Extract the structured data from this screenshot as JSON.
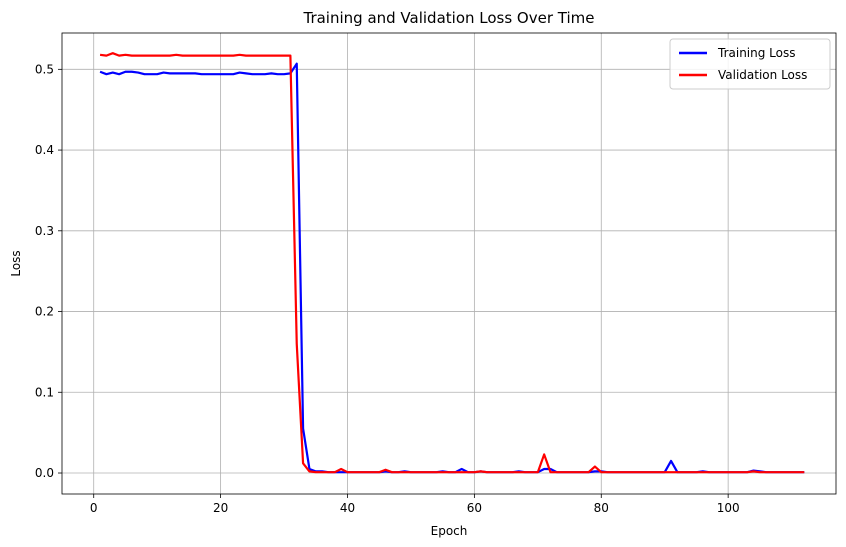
{
  "chart_data": {
    "type": "line",
    "title": "Training and Validation Loss Over Time",
    "xlabel": "Epoch",
    "ylabel": "Loss",
    "xlim": [
      -5,
      117
    ],
    "ylim": [
      -0.026,
      0.545
    ],
    "x_ticks": [
      0,
      20,
      40,
      60,
      80,
      100
    ],
    "y_ticks": [
      0.0,
      0.1,
      0.2,
      0.3,
      0.4,
      0.5
    ],
    "y_tick_labels": [
      "0.0",
      "0.1",
      "0.2",
      "0.3",
      "0.4",
      "0.5"
    ],
    "grid": true,
    "legend_position": "top-right",
    "series": [
      {
        "name": "Training Loss",
        "color": "#0000ff",
        "points": [
          [
            1,
            0.497
          ],
          [
            2,
            0.494
          ],
          [
            3,
            0.496
          ],
          [
            4,
            0.494
          ],
          [
            5,
            0.497
          ],
          [
            6,
            0.497
          ],
          [
            7,
            0.496
          ],
          [
            8,
            0.494
          ],
          [
            9,
            0.494
          ],
          [
            10,
            0.494
          ],
          [
            11,
            0.496
          ],
          [
            12,
            0.495
          ],
          [
            13,
            0.495
          ],
          [
            14,
            0.495
          ],
          [
            15,
            0.495
          ],
          [
            16,
            0.495
          ],
          [
            17,
            0.494
          ],
          [
            18,
            0.494
          ],
          [
            19,
            0.494
          ],
          [
            20,
            0.494
          ],
          [
            21,
            0.494
          ],
          [
            22,
            0.494
          ],
          [
            23,
            0.496
          ],
          [
            24,
            0.495
          ],
          [
            25,
            0.494
          ],
          [
            26,
            0.494
          ],
          [
            27,
            0.494
          ],
          [
            28,
            0.495
          ],
          [
            29,
            0.494
          ],
          [
            30,
            0.494
          ],
          [
            31,
            0.495
          ],
          [
            32,
            0.507
          ],
          [
            33,
            0.055
          ],
          [
            34,
            0.005
          ],
          [
            35,
            0.002
          ],
          [
            36,
            0.002
          ],
          [
            37,
            0.001
          ],
          [
            38,
            0.001
          ],
          [
            39,
            0.001
          ],
          [
            40,
            0.001
          ],
          [
            41,
            0.001
          ],
          [
            42,
            0.001
          ],
          [
            43,
            0.001
          ],
          [
            44,
            0.001
          ],
          [
            45,
            0.001
          ],
          [
            46,
            0.002
          ],
          [
            47,
            0.001
          ],
          [
            48,
            0.001
          ],
          [
            49,
            0.002
          ],
          [
            50,
            0.001
          ],
          [
            51,
            0.001
          ],
          [
            52,
            0.001
          ],
          [
            53,
            0.001
          ],
          [
            54,
            0.001
          ],
          [
            55,
            0.002
          ],
          [
            56,
            0.001
          ],
          [
            57,
            0.001
          ],
          [
            58,
            0.005
          ],
          [
            59,
            0.001
          ],
          [
            60,
            0.001
          ],
          [
            61,
            0.002
          ],
          [
            62,
            0.001
          ],
          [
            63,
            0.001
          ],
          [
            64,
            0.001
          ],
          [
            65,
            0.001
          ],
          [
            66,
            0.001
          ],
          [
            67,
            0.002
          ],
          [
            68,
            0.001
          ],
          [
            69,
            0.001
          ],
          [
            70,
            0.001
          ],
          [
            71,
            0.005
          ],
          [
            72,
            0.005
          ],
          [
            73,
            0.001
          ],
          [
            74,
            0.001
          ],
          [
            75,
            0.001
          ],
          [
            76,
            0.001
          ],
          [
            77,
            0.001
          ],
          [
            78,
            0.001
          ],
          [
            79,
            0.002
          ],
          [
            80,
            0.002
          ],
          [
            81,
            0.001
          ],
          [
            82,
            0.001
          ],
          [
            83,
            0.001
          ],
          [
            84,
            0.001
          ],
          [
            85,
            0.001
          ],
          [
            86,
            0.001
          ],
          [
            87,
            0.001
          ],
          [
            88,
            0.001
          ],
          [
            89,
            0.001
          ],
          [
            90,
            0.001
          ],
          [
            91,
            0.015
          ],
          [
            92,
            0.001
          ],
          [
            93,
            0.001
          ],
          [
            94,
            0.001
          ],
          [
            95,
            0.001
          ],
          [
            96,
            0.002
          ],
          [
            97,
            0.001
          ],
          [
            98,
            0.001
          ],
          [
            99,
            0.001
          ],
          [
            100,
            0.001
          ],
          [
            101,
            0.001
          ],
          [
            102,
            0.001
          ],
          [
            103,
            0.001
          ],
          [
            104,
            0.003
          ],
          [
            105,
            0.002
          ],
          [
            106,
            0.001
          ],
          [
            107,
            0.001
          ],
          [
            108,
            0.001
          ],
          [
            109,
            0.001
          ],
          [
            110,
            0.001
          ],
          [
            111,
            0.001
          ],
          [
            112,
            0.001
          ]
        ]
      },
      {
        "name": "Validation Loss",
        "color": "#ff0000",
        "points": [
          [
            1,
            0.518
          ],
          [
            2,
            0.517
          ],
          [
            3,
            0.52
          ],
          [
            4,
            0.517
          ],
          [
            5,
            0.518
          ],
          [
            6,
            0.517
          ],
          [
            7,
            0.517
          ],
          [
            8,
            0.517
          ],
          [
            9,
            0.517
          ],
          [
            10,
            0.517
          ],
          [
            11,
            0.517
          ],
          [
            12,
            0.517
          ],
          [
            13,
            0.518
          ],
          [
            14,
            0.517
          ],
          [
            15,
            0.517
          ],
          [
            16,
            0.517
          ],
          [
            17,
            0.517
          ],
          [
            18,
            0.517
          ],
          [
            19,
            0.517
          ],
          [
            20,
            0.517
          ],
          [
            21,
            0.517
          ],
          [
            22,
            0.517
          ],
          [
            23,
            0.518
          ],
          [
            24,
            0.517
          ],
          [
            25,
            0.517
          ],
          [
            26,
            0.517
          ],
          [
            27,
            0.517
          ],
          [
            28,
            0.517
          ],
          [
            29,
            0.517
          ],
          [
            30,
            0.517
          ],
          [
            31,
            0.517
          ],
          [
            32,
            0.16
          ],
          [
            33,
            0.012
          ],
          [
            34,
            0.002
          ],
          [
            35,
            0.001
          ],
          [
            36,
            0.001
          ],
          [
            37,
            0.001
          ],
          [
            38,
            0.001
          ],
          [
            39,
            0.005
          ],
          [
            40,
            0.001
          ],
          [
            41,
            0.001
          ],
          [
            42,
            0.001
          ],
          [
            43,
            0.001
          ],
          [
            44,
            0.001
          ],
          [
            45,
            0.001
          ],
          [
            46,
            0.004
          ],
          [
            47,
            0.001
          ],
          [
            48,
            0.001
          ],
          [
            49,
            0.001
          ],
          [
            50,
            0.001
          ],
          [
            51,
            0.001
          ],
          [
            52,
            0.001
          ],
          [
            53,
            0.001
          ],
          [
            54,
            0.001
          ],
          [
            55,
            0.001
          ],
          [
            56,
            0.001
          ],
          [
            57,
            0.001
          ],
          [
            58,
            0.001
          ],
          [
            59,
            0.001
          ],
          [
            60,
            0.001
          ],
          [
            61,
            0.002
          ],
          [
            62,
            0.001
          ],
          [
            63,
            0.001
          ],
          [
            64,
            0.001
          ],
          [
            65,
            0.001
          ],
          [
            66,
            0.001
          ],
          [
            67,
            0.001
          ],
          [
            68,
            0.001
          ],
          [
            69,
            0.001
          ],
          [
            70,
            0.001
          ],
          [
            71,
            0.023
          ],
          [
            72,
            0.001
          ],
          [
            73,
            0.001
          ],
          [
            74,
            0.001
          ],
          [
            75,
            0.001
          ],
          [
            76,
            0.001
          ],
          [
            77,
            0.001
          ],
          [
            78,
            0.001
          ],
          [
            79,
            0.008
          ],
          [
            80,
            0.001
          ],
          [
            81,
            0.001
          ],
          [
            82,
            0.001
          ],
          [
            83,
            0.001
          ],
          [
            84,
            0.001
          ],
          [
            85,
            0.001
          ],
          [
            86,
            0.001
          ],
          [
            87,
            0.001
          ],
          [
            88,
            0.001
          ],
          [
            89,
            0.001
          ],
          [
            90,
            0.001
          ],
          [
            91,
            0.001
          ],
          [
            92,
            0.001
          ],
          [
            93,
            0.001
          ],
          [
            94,
            0.001
          ],
          [
            95,
            0.001
          ],
          [
            96,
            0.001
          ],
          [
            97,
            0.001
          ],
          [
            98,
            0.001
          ],
          [
            99,
            0.001
          ],
          [
            100,
            0.001
          ],
          [
            101,
            0.001
          ],
          [
            102,
            0.001
          ],
          [
            103,
            0.001
          ],
          [
            104,
            0.002
          ],
          [
            105,
            0.001
          ],
          [
            106,
            0.001
          ],
          [
            107,
            0.001
          ],
          [
            108,
            0.001
          ],
          [
            109,
            0.001
          ],
          [
            110,
            0.001
          ],
          [
            111,
            0.001
          ],
          [
            112,
            0.001
          ]
        ]
      }
    ]
  }
}
